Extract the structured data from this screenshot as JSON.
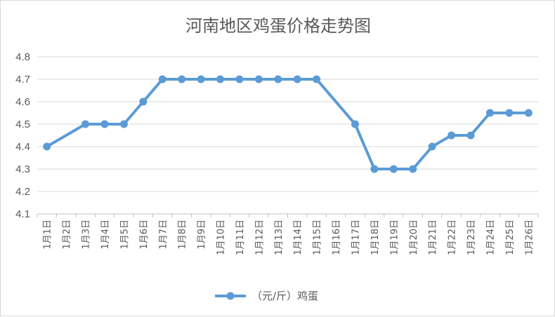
{
  "chart_data": {
    "type": "line",
    "title": "河南地区鸡蛋价格走势图",
    "categories": [
      "1月1日",
      "1月2日",
      "1月3日",
      "1月4日",
      "1月5日",
      "1月6日",
      "1月7日",
      "1月8日",
      "1月9日",
      "1月10日",
      "1月11日",
      "1月12日",
      "1月13日",
      "1月14日",
      "1月15日",
      "1月16日",
      "1月17日",
      "1月18日",
      "1月19日",
      "1月20日",
      "1月21日",
      "1月22日",
      "1月23日",
      "1月24日",
      "1月25日",
      "1月26日"
    ],
    "series": [
      {
        "name": "（元/斤）鸡蛋",
        "color": "#5b9bd5",
        "values": [
          4.4,
          null,
          4.5,
          4.5,
          4.5,
          4.6,
          4.7,
          4.7,
          4.7,
          4.7,
          4.7,
          4.7,
          4.7,
          4.7,
          4.7,
          null,
          4.5,
          4.3,
          4.3,
          4.3,
          4.4,
          4.45,
          4.45,
          4.55,
          4.55,
          4.55
        ]
      }
    ],
    "ylim": [
      4.1,
      4.8
    ],
    "yticks": [
      "4.1",
      "4.2",
      "4.3",
      "4.4",
      "4.5",
      "4.6",
      "4.7",
      "4.8"
    ],
    "grid": true,
    "legend": "bottom"
  }
}
